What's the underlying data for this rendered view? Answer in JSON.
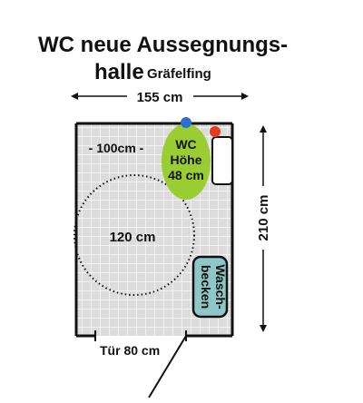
{
  "title": {
    "line1": "WC neue Aussegnungs-",
    "line2_main": "halle",
    "line2_sub": "Gräfelfing"
  },
  "dimensions": {
    "width": "155 cm",
    "depth": "210 cm",
    "free_space": "- 100cm -",
    "turning_circle": "120 cm",
    "door": "Tür 80 cm"
  },
  "fixtures": {
    "wc_line1": "WC",
    "wc_line2": "Höhe",
    "wc_line3": "48 cm",
    "sink_line1": "Wasch-",
    "sink_line2": "becken"
  },
  "colors": {
    "floor": "#dcdcdc",
    "tile_lines": "#ffffff",
    "wall": "#111111",
    "wc": "#9acd32",
    "sink": "#8fc6c6",
    "flush_button": "#2a6fd1",
    "alarm_button": "#e53b1e"
  }
}
